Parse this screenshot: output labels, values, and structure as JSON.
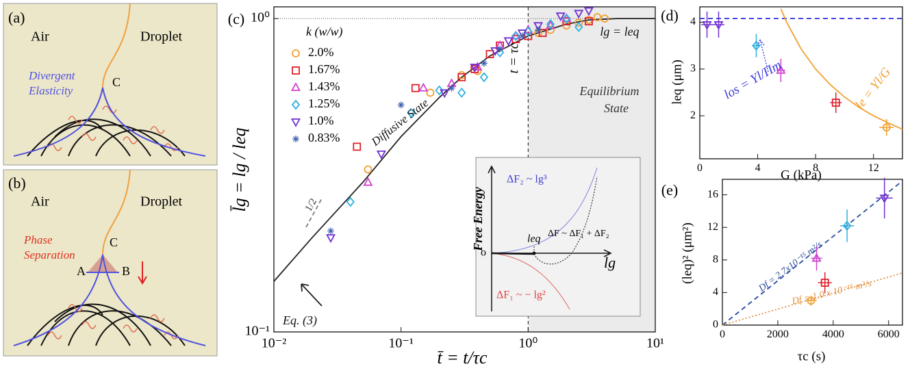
{
  "diagrams": {
    "a": {
      "label": "(a)",
      "left": "Air",
      "right": "Droplet",
      "point": "C",
      "caption": [
        "Divergent",
        "Elasticity"
      ]
    },
    "b": {
      "label": "(b)",
      "left": "Air",
      "right": "Droplet",
      "points": [
        "A",
        "B",
        "C"
      ],
      "caption": [
        "Phase",
        "Separation"
      ]
    }
  },
  "inset": {
    "ylabel": "Free Energy",
    "origin": "o",
    "f2": "ΔF₂ ~ lg³",
    "f": "ΔF ~ ΔF₁ + ΔF₂",
    "leq": "leq",
    "xlabel": "lg",
    "f1": "ΔF₁ ~ − lg²"
  },
  "chart_data": [
    {
      "type": "scatter",
      "panel_label": "(c)",
      "xlabel": "t̄ = t/τc",
      "ylabel": "l̄g = lg / leq",
      "xlog": true,
      "ylog": true,
      "xlim": [
        0.01,
        10
      ],
      "ylim": [
        0.1,
        1.09
      ],
      "xticks": [
        {
          "value": 0.01,
          "label": "10⁻²"
        },
        {
          "value": 0.1,
          "label": "10⁻¹"
        },
        {
          "value": 1,
          "label": "10⁰"
        },
        {
          "value": 10,
          "label": "10¹"
        }
      ],
      "yticks": [
        {
          "value": 0.1,
          "label": "10⁻¹"
        },
        {
          "value": 1,
          "label": "10⁰"
        }
      ],
      "ref_x": 1,
      "ref_y": 1,
      "legend_title": "k (w/w)",
      "annotations": [
        "Diffusive State",
        "Equilibrium",
        "State",
        "t = τc",
        "lg = leq",
        "1/2",
        "Eq. (3)"
      ],
      "series": [
        {
          "name": "2.0%",
          "color": "#f0a030",
          "marker": "circle",
          "x": [
            0.055,
            0.17,
            0.3,
            0.4,
            1.2,
            1.5,
            2,
            2.5,
            3,
            3.5,
            4
          ],
          "values": [
            0.33,
            0.58,
            0.66,
            0.68,
            0.9,
            0.92,
            0.95,
            0.97,
            0.99,
            1.01,
            1.0
          ]
        },
        {
          "name": "1.67%",
          "color": "#e0202a",
          "marker": "square",
          "x": [
            0.045,
            0.13,
            0.3,
            0.38,
            0.5,
            0.6,
            0.8,
            1.0,
            1.3,
            2,
            3
          ],
          "values": [
            0.39,
            0.6,
            0.65,
            0.69,
            0.77,
            0.82,
            0.86,
            0.88,
            0.9,
            0.98,
            0.98
          ]
        },
        {
          "name": "1.43%",
          "color": "#d040d0",
          "marker": "triangle",
          "x": [
            0.055,
            0.15,
            0.25,
            0.4,
            0.6,
            0.8,
            1.0,
            1.5,
            2
          ],
          "values": [
            0.3,
            0.6,
            0.62,
            0.7,
            0.82,
            0.88,
            0.92,
            0.95,
            1.0
          ]
        },
        {
          "name": "1.25%",
          "color": "#30b0e0",
          "marker": "diamond",
          "x": [
            0.04,
            0.12,
            0.2,
            0.3,
            0.45,
            0.6,
            0.8,
            1.0,
            1.5,
            2,
            2.5
          ],
          "values": [
            0.26,
            0.5,
            0.59,
            0.58,
            0.65,
            0.78,
            0.88,
            0.91,
            0.96,
            1.0,
            0.94
          ]
        },
        {
          "name": "1.0%",
          "color": "#7030d0",
          "marker": "triangle-down",
          "x": [
            0.028,
            0.07,
            0.22,
            0.38,
            0.55,
            0.7,
            0.9,
            1.2,
            1.8,
            2.5,
            3
          ],
          "values": [
            0.2,
            0.37,
            0.58,
            0.7,
            0.79,
            0.85,
            0.9,
            0.95,
            1.02,
            1.04,
            1.06
          ]
        },
        {
          "name": "0.83%",
          "color": "#4060b0",
          "marker": "star",
          "x": [
            0.028,
            0.1,
            0.25,
            0.45,
            0.6,
            0.9,
            1.2
          ],
          "values": [
            0.21,
            0.53,
            0.6,
            0.72,
            0.8,
            0.88,
            0.92
          ]
        }
      ],
      "lines": [
        {
          "color": "#222222",
          "style": "solid",
          "x": [
            0.01,
            0.02,
            0.05,
            0.1,
            0.2,
            0.3,
            0.5,
            1,
            2,
            3,
            5,
            10
          ],
          "values": [
            0.145,
            0.2,
            0.3,
            0.42,
            0.56,
            0.65,
            0.76,
            0.88,
            0.96,
            0.99,
            1.0,
            1.0
          ]
        }
      ]
    },
    {
      "type": "scatter",
      "panel_label": "(d)",
      "xlabel": "G (kPa)",
      "ylabel": "leq (μm)",
      "xlim": [
        0,
        14
      ],
      "ylim": [
        1.08,
        4.33
      ],
      "xticks": [
        0,
        4,
        8,
        12
      ],
      "yticks": [
        2,
        3,
        4
      ],
      "annotations": [
        "los = Υl/Πm",
        "le = Υl/G"
      ],
      "series": [
        {
          "color": "#7030d0",
          "marker": "triangle-down",
          "x": [
            0.5,
            1.3
          ],
          "values": [
            3.95,
            3.95
          ],
          "errors": [
            0.28,
            0.28
          ],
          "xerrors": [
            0.4,
            0.4
          ]
        },
        {
          "color": "#30b0e0",
          "marker": "diamond",
          "x": [
            3.9
          ],
          "values": [
            3.5
          ],
          "errors": [
            0.25
          ],
          "xerrors": [
            0.3
          ]
        },
        {
          "color": "#d040d0",
          "marker": "triangle",
          "x": [
            5.6
          ],
          "values": [
            2.97
          ],
          "errors": [
            0.25
          ],
          "xerrors": [
            0.3
          ]
        },
        {
          "color": "#e0202a",
          "marker": "square",
          "x": [
            9.4
          ],
          "values": [
            2.28
          ],
          "errors": [
            0.22
          ],
          "xerrors": [
            0.4
          ]
        },
        {
          "color": "#f0a030",
          "marker": "circle",
          "x": [
            12.9
          ],
          "values": [
            1.75
          ],
          "errors": [
            0.18
          ],
          "xerrors": [
            0.5
          ]
        }
      ],
      "lines": [
        {
          "color": "#3a3adf",
          "style": "dashed",
          "x": [
            0,
            14
          ],
          "values": [
            4.08,
            4.08
          ]
        },
        {
          "color": "#f0a030",
          "style": "solid",
          "x": [
            5.6,
            6,
            7,
            8,
            9,
            10,
            11,
            12,
            13,
            14
          ],
          "values": [
            4.29,
            4.0,
            3.43,
            3.0,
            2.67,
            2.4,
            2.18,
            2.0,
            1.85,
            1.71
          ]
        }
      ]
    },
    {
      "type": "scatter",
      "panel_label": "(e)",
      "xlabel": "τc (s)",
      "ylabel": "(leq)² (μm²)",
      "xlim": [
        0,
        6500
      ],
      "ylim": [
        0,
        17.9
      ],
      "xticks": [
        0,
        2000,
        4000,
        6000
      ],
      "yticks": [
        0,
        4,
        8,
        12,
        16
      ],
      "annotations": [
        "Df = 2.7x10⁻¹⁵ m²/s",
        "Df = 1.0 x 10⁻¹⁵ m²/s"
      ],
      "series": [
        {
          "color": "#f0a030",
          "marker": "circle",
          "x": [
            3200
          ],
          "values": [
            3.0
          ],
          "errors": [
            0.6
          ],
          "xerrors": [
            200
          ]
        },
        {
          "color": "#e0202a",
          "marker": "square",
          "x": [
            3700
          ],
          "values": [
            5.2
          ],
          "errors": [
            1.3
          ],
          "xerrors": [
            250
          ]
        },
        {
          "color": "#d040d0",
          "marker": "triangle",
          "x": [
            3400
          ],
          "values": [
            8.2
          ],
          "errors": [
            1.5
          ],
          "xerrors": [
            200
          ]
        },
        {
          "color": "#30b0e0",
          "marker": "diamond",
          "x": [
            4500
          ],
          "values": [
            12.2
          ],
          "errors": [
            2.0
          ],
          "xerrors": [
            250
          ]
        },
        {
          "color": "#7030d0",
          "marker": "triangle-down",
          "x": [
            5850
          ],
          "values": [
            15.6
          ],
          "errors": [
            2.5
          ],
          "xerrors": [
            300
          ]
        }
      ],
      "lines": [
        {
          "color": "#2a4a9a",
          "style": "dashed",
          "x": [
            0,
            6500
          ],
          "values": [
            0,
            17.7
          ]
        },
        {
          "color": "#e09040",
          "style": "dotted",
          "x": [
            0,
            6500
          ],
          "values": [
            0,
            6.4
          ]
        }
      ]
    }
  ]
}
